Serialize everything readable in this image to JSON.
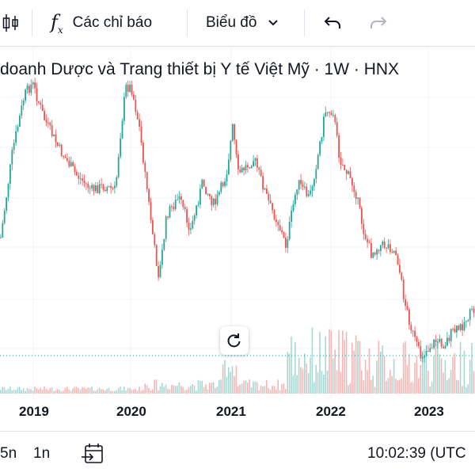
{
  "toolbar": {
    "indicators_label": "Các chỉ báo",
    "chart_type_label": "Biểu đồ"
  },
  "legend": {
    "title": "doanh Dược và Trang thiết bị Y tế Việt Mỹ · 1W · HNX"
  },
  "xaxis": {
    "labels": [
      "2019",
      "2020",
      "2021",
      "2022",
      "2023"
    ]
  },
  "bottom": {
    "range_5y": "5n",
    "range_1y": "1n",
    "clock": "10:02:39 (UTC"
  },
  "colors": {
    "up": "#26a69a",
    "down": "#ef5350",
    "grid": "#f0f3fa",
    "price_line": "#26a69a"
  },
  "chart_data": {
    "type": "candlestick",
    "x_ticks": [
      "2019",
      "2020",
      "2021",
      "2022",
      "2023"
    ],
    "grid": true
  }
}
